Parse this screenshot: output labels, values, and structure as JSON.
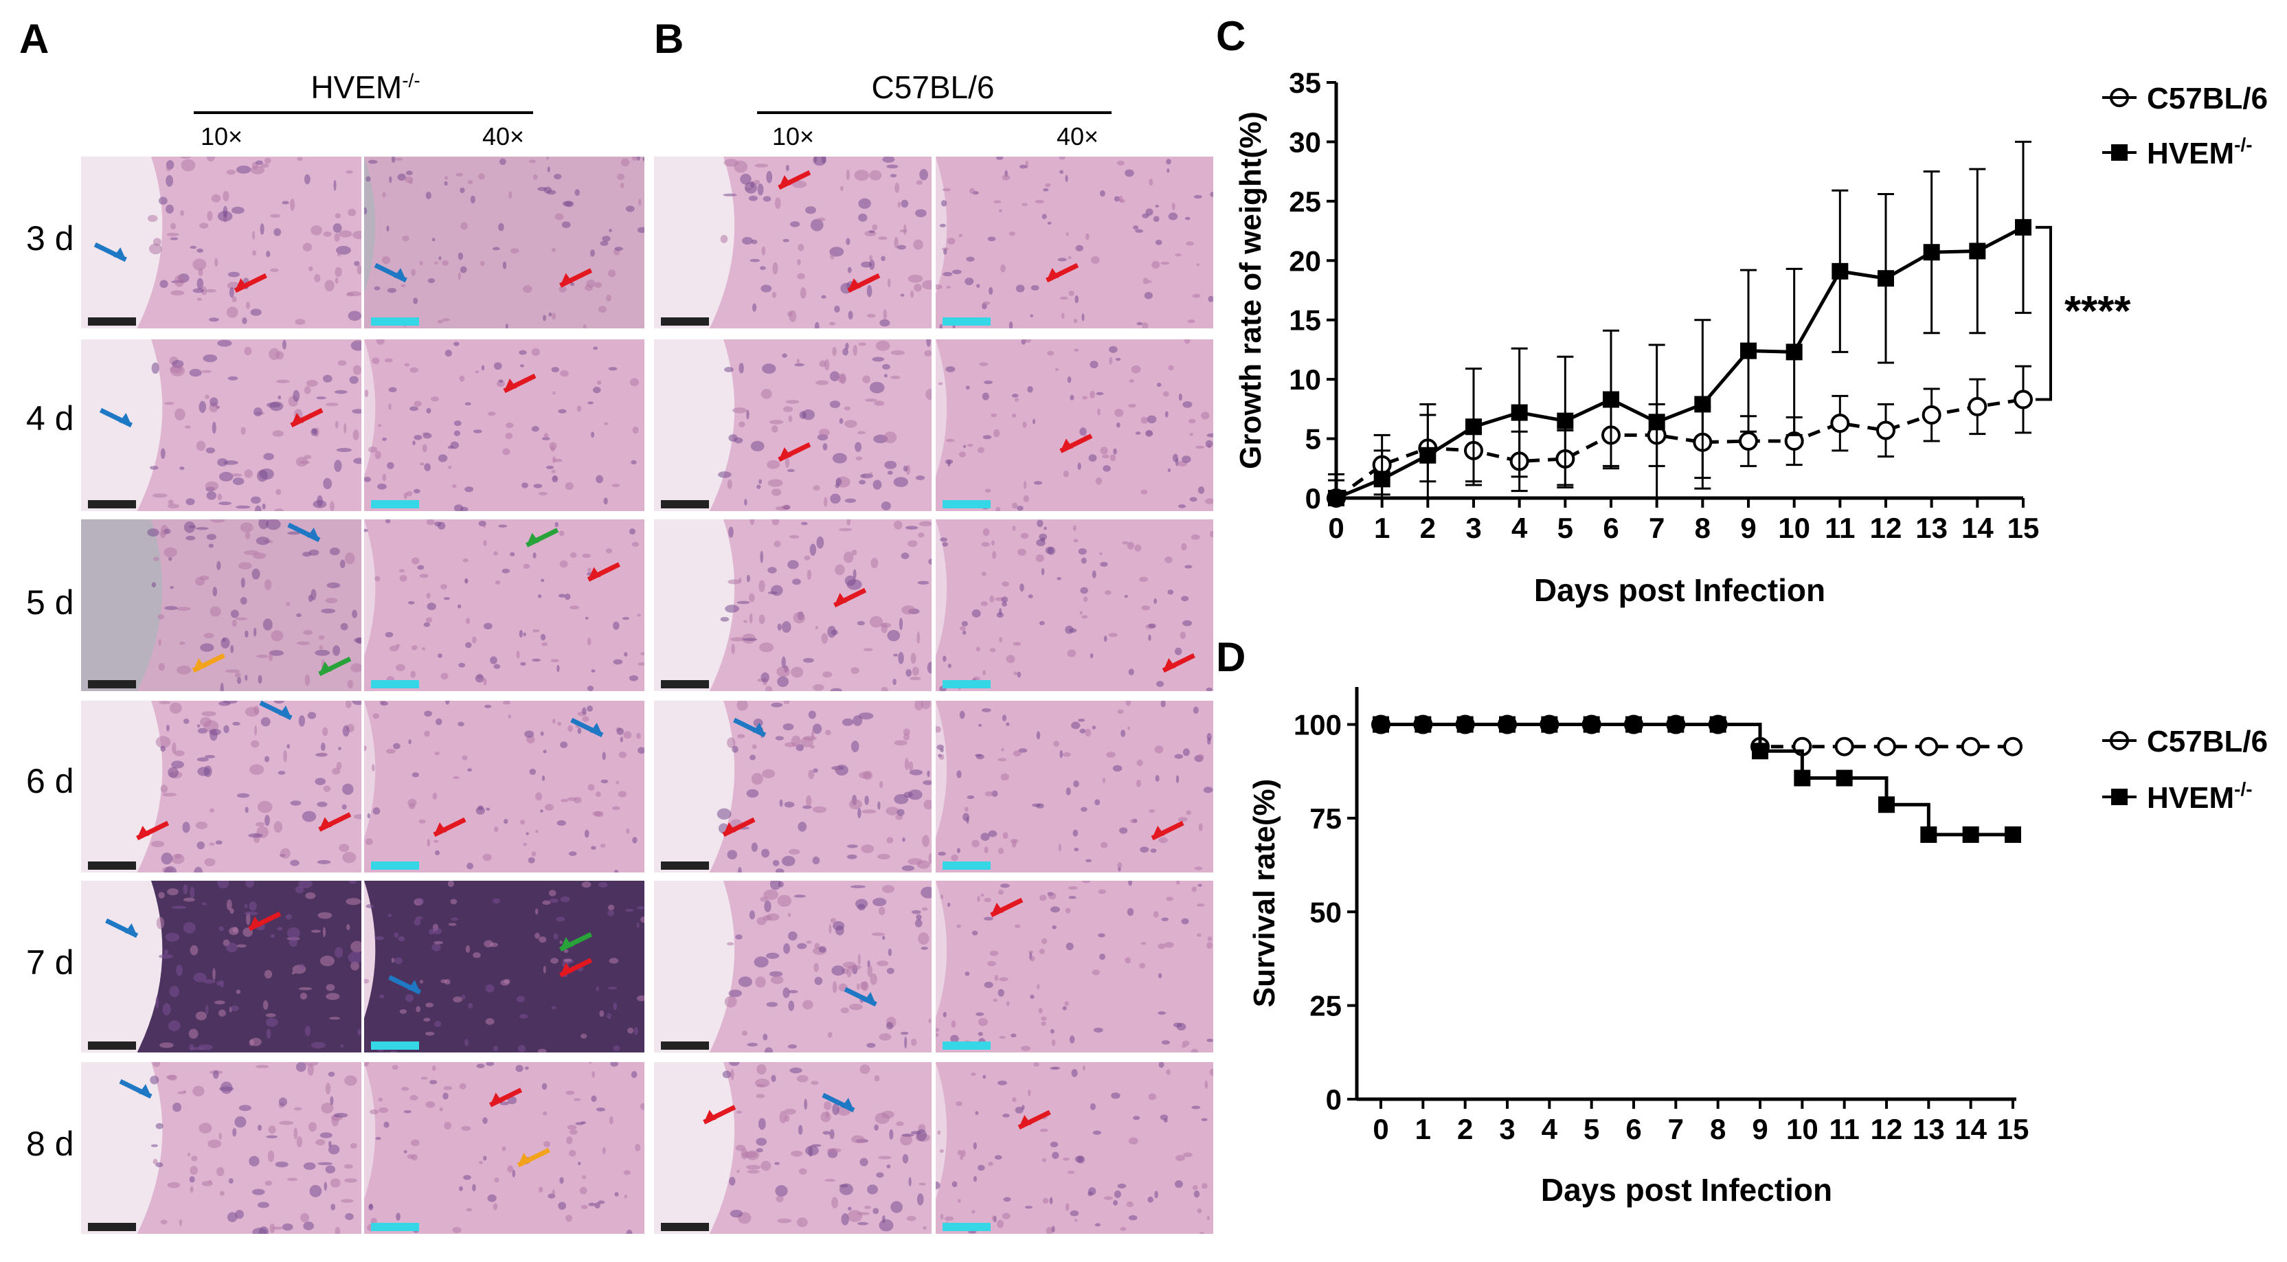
{
  "panels": {
    "A": {
      "letter": "A",
      "title": "HVEM",
      "title_sup": "-/-"
    },
    "B": {
      "letter": "B",
      "title": "C57BL/6"
    },
    "C": {
      "letter": "C"
    },
    "D": {
      "letter": "D"
    }
  },
  "magnifications": {
    "low": "10×",
    "high": "40×"
  },
  "row_labels": [
    "3 d",
    "4 d",
    "5 d",
    "6 d",
    "7 d",
    "8 d"
  ],
  "colors": {
    "he_pink": "#d9a8c8",
    "he_purple": "#7a4f92",
    "he_dark": "#3b2050",
    "arrow_red": "#e3171f",
    "arrow_blue": "#1f78c4",
    "arrow_green": "#27a33a",
    "arrow_orange": "#f2a21b",
    "scale_black": "#222222",
    "scale_cyan": "#35d6e6"
  },
  "chart_data": [
    {
      "type": "line",
      "panel": "C",
      "ylabel": "Growth rate of weight(%)",
      "xlabel": "Days post Infection",
      "x": [
        0,
        1,
        2,
        3,
        4,
        5,
        6,
        7,
        8,
        9,
        10,
        11,
        12,
        13,
        14,
        15
      ],
      "xticks": [
        "0",
        "1",
        "2",
        "3",
        "4",
        "5",
        "6",
        "7",
        "8",
        "9",
        "10",
        "11",
        "12",
        "13",
        "14",
        "15"
      ],
      "yticks": [
        "0",
        "5",
        "10",
        "15",
        "20",
        "25",
        "30",
        "35"
      ],
      "ylim": [
        0,
        35
      ],
      "significance": "****",
      "series": [
        {
          "name": "C57BL/6",
          "marker": "open-circle",
          "line": "dashed",
          "values": [
            0,
            2.8,
            4.2,
            4.0,
            3.1,
            3.3,
            5.3,
            5.3,
            4.7,
            4.8,
            4.8,
            6.3,
            5.7,
            7.0,
            7.7,
            8.3
          ],
          "errors": [
            2.0,
            2.5,
            2.8,
            2.6,
            2.5,
            2.4,
            2.6,
            2.6,
            3.0,
            2.1,
            2.0,
            2.3,
            2.2,
            2.2,
            2.3,
            2.8
          ]
        },
        {
          "name": "HVEM",
          "name_sup": "-/-",
          "marker": "filled-square",
          "line": "solid",
          "values": [
            0,
            1.6,
            3.6,
            6.0,
            7.2,
            6.5,
            8.3,
            6.4,
            7.9,
            12.4,
            12.3,
            19.1,
            18.5,
            20.7,
            20.8,
            22.8
          ],
          "errors": [
            1.5,
            2.4,
            4.3,
            4.9,
            5.4,
            5.4,
            5.8,
            6.5,
            7.1,
            6.8,
            7.0,
            6.8,
            7.1,
            6.8,
            6.9,
            7.2
          ]
        }
      ]
    },
    {
      "type": "line",
      "panel": "D",
      "ylabel": "Survival rate(%)",
      "xlabel": "Days post Infection",
      "x": [
        0,
        1,
        2,
        3,
        4,
        5,
        6,
        7,
        8,
        9,
        10,
        11,
        12,
        13,
        14,
        15
      ],
      "xticks": [
        "0",
        "1",
        "2",
        "3",
        "4",
        "5",
        "6",
        "7",
        "8",
        "9",
        "10",
        "11",
        "12",
        "13",
        "14",
        "15"
      ],
      "yticks": [
        "0",
        "25",
        "50",
        "75",
        "100"
      ],
      "ylim": [
        0,
        110
      ],
      "series": [
        {
          "name": "C57BL/6",
          "marker": "open-circle",
          "line": "dashed",
          "values": [
            100,
            100,
            100,
            100,
            100,
            100,
            100,
            100,
            100,
            94.1,
            94.1,
            94.1,
            94.1,
            94.1,
            94.1,
            94.1
          ]
        },
        {
          "name": "HVEM",
          "name_sup": "-/-",
          "marker": "filled-square",
          "line": "solid",
          "values": [
            100,
            100,
            100,
            100,
            100,
            100,
            100,
            100,
            100,
            92.9,
            85.7,
            85.7,
            78.6,
            70.6,
            70.6,
            70.6
          ]
        }
      ]
    }
  ]
}
